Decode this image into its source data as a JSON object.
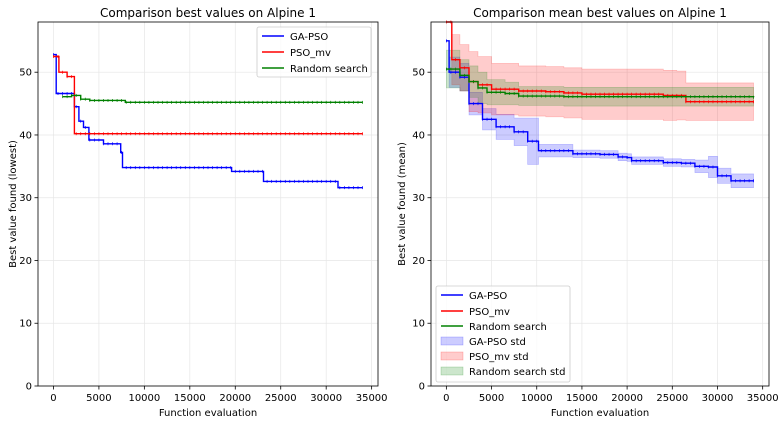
{
  "chart_data": [
    {
      "type": "line",
      "title": "Comparison best values on Alpine 1",
      "xlabel": "Function evaluation",
      "ylabel": "Best value found (lowest)",
      "xlim": [
        -1700,
        35700
      ],
      "ylim": [
        0,
        58
      ],
      "xticks": [
        0,
        5000,
        10000,
        15000,
        20000,
        25000,
        30000,
        35000
      ],
      "yticks": [
        0,
        10,
        20,
        30,
        40,
        50
      ],
      "grid": true,
      "legend": "top-right",
      "series": [
        {
          "name": "GA-PSO",
          "color": "#0000ff",
          "points": [
            [
              0,
              52.8
            ],
            [
              300,
              46.6
            ],
            [
              1700,
              46.6
            ],
            [
              2300,
              44.5
            ],
            [
              2800,
              42.2
            ],
            [
              3300,
              41.2
            ],
            [
              3900,
              39.2
            ],
            [
              5000,
              39.2
            ],
            [
              5500,
              38.6
            ],
            [
              7400,
              37.2
            ],
            [
              7600,
              34.8
            ],
            [
              19300,
              34.8
            ],
            [
              19600,
              34.2
            ],
            [
              22200,
              34.2
            ],
            [
              23100,
              32.6
            ],
            [
              30300,
              32.6
            ],
            [
              31300,
              31.6
            ],
            [
              34000,
              31.6
            ]
          ]
        },
        {
          "name": "PSO_mv",
          "color": "#ff0000",
          "points": [
            [
              0,
              52.5
            ],
            [
              600,
              50.0
            ],
            [
              1500,
              49.3
            ],
            [
              2300,
              40.2
            ],
            [
              34000,
              40.2
            ]
          ]
        },
        {
          "name": "Random search",
          "color": "#008000",
          "points": [
            [
              1000,
              46.1
            ],
            [
              2000,
              46.3
            ],
            [
              3000,
              45.7
            ],
            [
              4000,
              45.5
            ],
            [
              7000,
              45.5
            ],
            [
              7900,
              45.2
            ],
            [
              34000,
              45.2
            ]
          ]
        }
      ]
    },
    {
      "type": "line",
      "title": "Comparison mean best values on Alpine 1",
      "xlabel": "Function evaluation",
      "ylabel": "Best value found (mean)",
      "xlim": [
        -1700,
        35700
      ],
      "ylim": [
        0,
        58
      ],
      "xticks": [
        0,
        5000,
        10000,
        15000,
        20000,
        25000,
        30000,
        35000
      ],
      "yticks": [
        0,
        10,
        20,
        30,
        40,
        50
      ],
      "grid": true,
      "legend": "bottom-left",
      "series": [
        {
          "name": "GA-PSO",
          "color": "#0000ff",
          "points": [
            [
              0,
              55.0
            ],
            [
              300,
              50.0
            ],
            [
              1500,
              49.2
            ],
            [
              2500,
              45.0
            ],
            [
              4000,
              42.5
            ],
            [
              5500,
              41.3
            ],
            [
              7500,
              40.5
            ],
            [
              9000,
              39.0
            ],
            [
              10000,
              39.0
            ],
            [
              10200,
              37.5
            ],
            [
              13000,
              37.5
            ],
            [
              14000,
              37.0
            ],
            [
              17000,
              36.9
            ],
            [
              19000,
              36.5
            ],
            [
              20000,
              36.4
            ],
            [
              20500,
              35.9
            ],
            [
              23000,
              35.9
            ],
            [
              24000,
              35.6
            ],
            [
              26000,
              35.5
            ],
            [
              27500,
              35.0
            ],
            [
              29000,
              34.9
            ],
            [
              30000,
              33.5
            ],
            [
              31500,
              32.7
            ],
            [
              34000,
              32.7
            ]
          ],
          "std": [
            [
              0,
              55.0,
              55.0
            ],
            [
              300,
              47.6,
              52.4
            ],
            [
              1500,
              47.0,
              51.4
            ],
            [
              2500,
              43.2,
              46.8
            ],
            [
              4000,
              40.8,
              44.2
            ],
            [
              5500,
              39.3,
              43.3
            ],
            [
              7500,
              38.3,
              42.7
            ],
            [
              9000,
              35.3,
              42.7
            ],
            [
              10000,
              35.3,
              42.7
            ],
            [
              10200,
              36.5,
              38.5
            ],
            [
              13000,
              36.5,
              38.5
            ],
            [
              14000,
              36.4,
              37.6
            ],
            [
              17000,
              36.3,
              37.5
            ],
            [
              19000,
              35.9,
              37.1
            ],
            [
              20000,
              35.8,
              37.0
            ],
            [
              20500,
              35.3,
              36.5
            ],
            [
              23000,
              35.3,
              36.5
            ],
            [
              24000,
              35.0,
              36.2
            ],
            [
              26000,
              34.9,
              36.1
            ],
            [
              27500,
              34.0,
              36.0
            ],
            [
              29000,
              33.2,
              36.6
            ],
            [
              30000,
              32.3,
              34.7
            ],
            [
              31500,
              31.6,
              33.8
            ],
            [
              34000,
              31.6,
              33.8
            ]
          ]
        },
        {
          "name": "PSO_mv",
          "color": "#ff0000",
          "points": [
            [
              0,
              58.0
            ],
            [
              600,
              52.0
            ],
            [
              1500,
              50.7
            ],
            [
              2500,
              48.5
            ],
            [
              3500,
              48.0
            ],
            [
              5000,
              47.3
            ],
            [
              8000,
              47.0
            ],
            [
              11000,
              46.9
            ],
            [
              13000,
              46.7
            ],
            [
              15000,
              46.5
            ],
            [
              20000,
              46.5
            ],
            [
              24000,
              46.3
            ],
            [
              25500,
              46.3
            ],
            [
              26500,
              45.3
            ],
            [
              34000,
              45.3
            ]
          ],
          "std": [
            [
              0,
              58.0,
              58.0
            ],
            [
              600,
              48.0,
              56.0
            ],
            [
              1500,
              47.0,
              54.4
            ],
            [
              2500,
              43.7,
              53.3
            ],
            [
              3500,
              43.5,
              52.5
            ],
            [
              5000,
              43.2,
              51.4
            ],
            [
              8000,
              43.0,
              51.0
            ],
            [
              11000,
              42.9,
              50.9
            ],
            [
              13000,
              42.7,
              50.7
            ],
            [
              15000,
              42.5,
              50.5
            ],
            [
              20000,
              42.5,
              50.5
            ],
            [
              24000,
              42.3,
              50.3
            ],
            [
              25500,
              42.4,
              50.2
            ],
            [
              26500,
              42.3,
              48.3
            ],
            [
              34000,
              42.3,
              48.3
            ]
          ]
        },
        {
          "name": "Random search",
          "color": "#008000",
          "points": [
            [
              0,
              50.5
            ],
            [
              1500,
              49.5
            ],
            [
              2500,
              48.5
            ],
            [
              3500,
              47.5
            ],
            [
              4500,
              46.8
            ],
            [
              6500,
              46.6
            ],
            [
              8000,
              46.2
            ],
            [
              12000,
              46.2
            ],
            [
              13000,
              46.1
            ],
            [
              25000,
              46.1
            ],
            [
              34000,
              46.0
            ]
          ],
          "std": [
            [
              0,
              47.5,
              53.5
            ],
            [
              1500,
              47.0,
              52.0
            ],
            [
              2500,
              46.0,
              51.0
            ],
            [
              3500,
              45.0,
              50.0
            ],
            [
              4500,
              44.8,
              48.8
            ],
            [
              6500,
              44.8,
              48.4
            ],
            [
              8000,
              44.7,
              47.7
            ],
            [
              12000,
              44.7,
              47.7
            ],
            [
              13000,
              44.6,
              47.6
            ],
            [
              25000,
              44.6,
              47.6
            ],
            [
              34000,
              44.6,
              47.4
            ]
          ]
        }
      ]
    }
  ],
  "legends": {
    "left": [
      "GA-PSO",
      "PSO_mv",
      "Random search"
    ],
    "right": [
      "GA-PSO",
      "PSO_mv",
      "Random search",
      "GA-PSO std",
      "PSO_mv std",
      "Random search std"
    ]
  }
}
